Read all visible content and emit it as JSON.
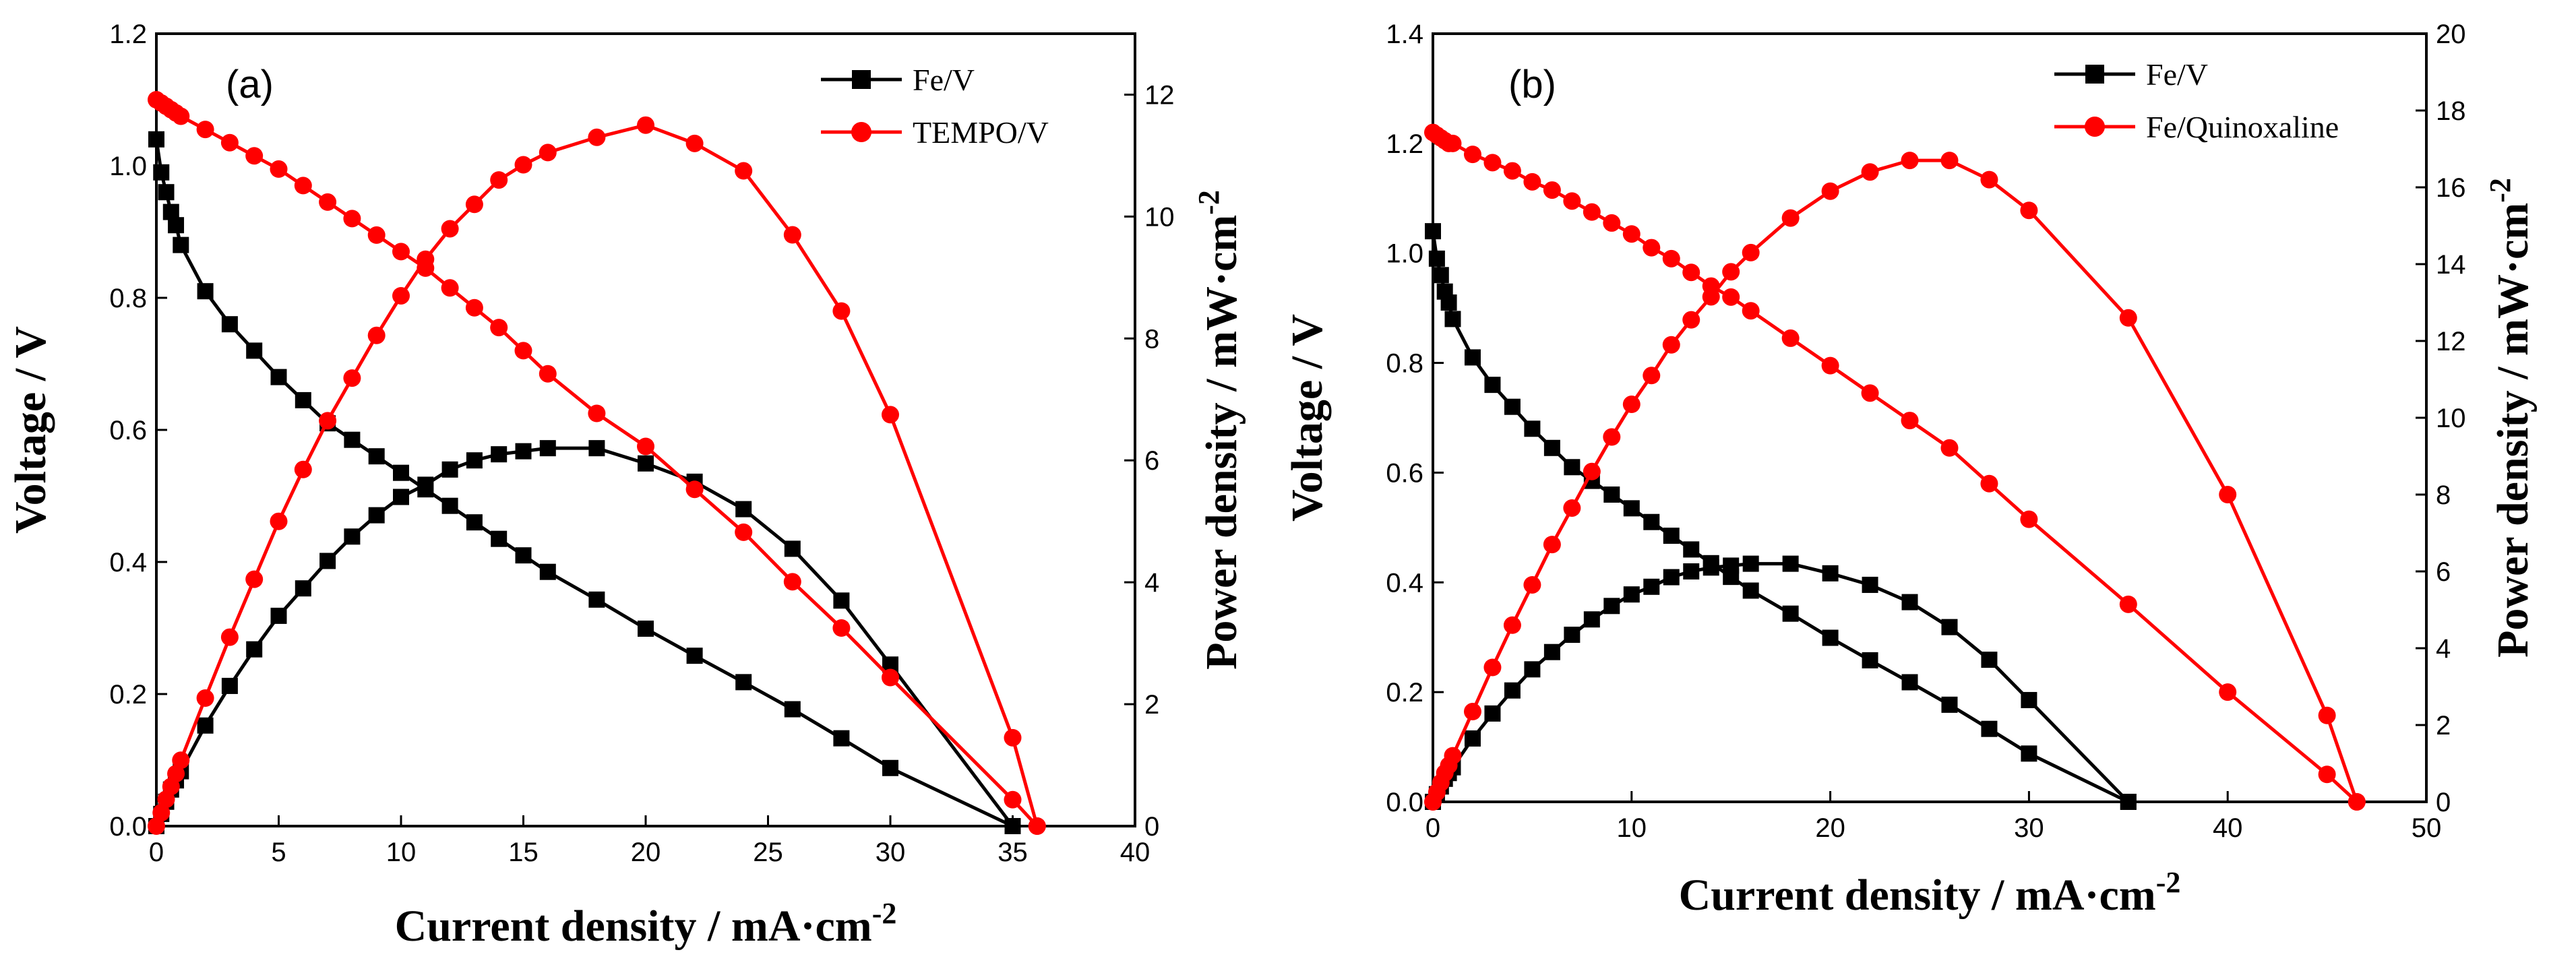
{
  "chart_data": [
    {
      "type": "line",
      "panel_label": "(a)",
      "xlabel": "Current density / mA·cm",
      "xlabel_exp": "-2",
      "ylabel": "Voltage / V",
      "y2label": "Power density / mW·cm",
      "y2label_exp": "-2",
      "xlim": [
        0,
        40
      ],
      "ylim": [
        0,
        1.2
      ],
      "y2lim": [
        0,
        13
      ],
      "xticks": [
        "0",
        "5",
        "10",
        "15",
        "20",
        "25",
        "30",
        "35",
        "40"
      ],
      "yticks": [
        "0.0",
        "0.2",
        "0.4",
        "0.6",
        "0.8",
        "1.0",
        "1.2"
      ],
      "y2ticks": [
        "0",
        "2",
        "4",
        "6",
        "8",
        "10",
        "12"
      ],
      "legend_position": "top-right",
      "grid": false,
      "series": [
        {
          "name": "Fe/V",
          "color": "#000000",
          "marker": "square",
          "kind": "voltage",
          "x": [
            0,
            0.2,
            0.4,
            0.6,
            0.8,
            1,
            2,
            3,
            4,
            5,
            6,
            7,
            8,
            9,
            10,
            11,
            12,
            13,
            14,
            15,
            16,
            18,
            20,
            22,
            24,
            26,
            28,
            30,
            35
          ],
          "y": [
            1.04,
            0.99,
            0.96,
            0.93,
            0.91,
            0.88,
            0.81,
            0.76,
            0.72,
            0.68,
            0.645,
            0.61,
            0.585,
            0.56,
            0.535,
            0.51,
            0.485,
            0.46,
            0.435,
            0.41,
            0.385,
            0.343,
            0.299,
            0.258,
            0.218,
            0.177,
            0.133,
            0.088,
            0.0
          ]
        },
        {
          "name": "Fe/V",
          "color": "#000000",
          "marker": "square",
          "kind": "power",
          "x": [
            0,
            0.2,
            0.4,
            0.6,
            0.8,
            1,
            2,
            3,
            4,
            5,
            6,
            7,
            8,
            9,
            10,
            11,
            12,
            13,
            14,
            15,
            16,
            18,
            20,
            22,
            24,
            26,
            28,
            30,
            35
          ],
          "y": [
            0,
            0.2,
            0.4,
            0.6,
            0.75,
            0.9,
            1.65,
            2.3,
            2.9,
            3.45,
            3.9,
            4.35,
            4.75,
            5.1,
            5.4,
            5.6,
            5.85,
            6.0,
            6.1,
            6.15,
            6.2,
            6.2,
            5.95,
            5.65,
            5.2,
            4.55,
            3.7,
            2.65,
            0.0
          ]
        },
        {
          "name": "TEMPO/V",
          "color": "#ff0000",
          "marker": "circle",
          "kind": "voltage",
          "x": [
            0,
            0.2,
            0.4,
            0.6,
            0.8,
            1,
            2,
            3,
            4,
            5,
            6,
            7,
            8,
            9,
            10,
            11,
            12,
            13,
            14,
            15,
            16,
            18,
            20,
            22,
            24,
            26,
            28,
            30,
            35,
            36
          ],
          "y": [
            1.1,
            1.095,
            1.09,
            1.085,
            1.08,
            1.075,
            1.055,
            1.035,
            1.015,
            0.995,
            0.97,
            0.945,
            0.92,
            0.895,
            0.87,
            0.845,
            0.815,
            0.785,
            0.755,
            0.72,
            0.685,
            0.625,
            0.575,
            0.51,
            0.445,
            0.37,
            0.3,
            0.225,
            0.04,
            0.0
          ]
        },
        {
          "name": "TEMPO/V",
          "color": "#ff0000",
          "marker": "circle",
          "kind": "power",
          "x": [
            0,
            0.2,
            0.4,
            0.6,
            0.8,
            1,
            2,
            3,
            4,
            5,
            6,
            7,
            8,
            9,
            10,
            11,
            12,
            13,
            14,
            15,
            16,
            18,
            20,
            22,
            24,
            26,
            28,
            30,
            35,
            36
          ],
          "y": [
            0,
            0.22,
            0.44,
            0.65,
            0.86,
            1.08,
            2.1,
            3.1,
            4.05,
            5.0,
            5.85,
            6.65,
            7.35,
            8.05,
            8.7,
            9.3,
            9.8,
            10.2,
            10.6,
            10.85,
            11.05,
            11.3,
            11.5,
            11.2,
            10.75,
            9.7,
            8.45,
            6.75,
            1.45,
            0.0
          ]
        }
      ]
    },
    {
      "type": "line",
      "panel_label": "(b)",
      "xlabel": "Current density / mA·cm",
      "xlabel_exp": "-2",
      "ylabel": "Voltage / V",
      "y2label": "Power density / mW·cm",
      "y2label_exp": "-2",
      "xlim": [
        0,
        50
      ],
      "ylim": [
        0,
        1.4
      ],
      "y2lim": [
        0,
        20
      ],
      "xticks": [
        "0",
        "10",
        "20",
        "30",
        "40",
        "50"
      ],
      "yticks": [
        "0.0",
        "0.2",
        "0.4",
        "0.6",
        "0.8",
        "1.0",
        "1.2",
        "1.4"
      ],
      "y2ticks": [
        "0",
        "2",
        "4",
        "6",
        "8",
        "10",
        "12",
        "14",
        "16",
        "18",
        "20"
      ],
      "legend_position": "top-right",
      "grid": false,
      "series": [
        {
          "name": "Fe/V",
          "color": "#000000",
          "marker": "square",
          "kind": "voltage",
          "x": [
            0,
            0.2,
            0.4,
            0.6,
            0.8,
            1,
            2,
            3,
            4,
            5,
            6,
            7,
            8,
            9,
            10,
            11,
            12,
            13,
            14,
            15,
            16,
            18,
            20,
            22,
            24,
            26,
            28,
            30,
            35
          ],
          "y": [
            1.04,
            0.99,
            0.96,
            0.93,
            0.91,
            0.88,
            0.81,
            0.76,
            0.72,
            0.68,
            0.645,
            0.61,
            0.585,
            0.56,
            0.535,
            0.51,
            0.485,
            0.46,
            0.435,
            0.41,
            0.385,
            0.343,
            0.299,
            0.258,
            0.218,
            0.177,
            0.133,
            0.088,
            0.0
          ]
        },
        {
          "name": "Fe/V",
          "color": "#000000",
          "marker": "square",
          "kind": "power",
          "x": [
            0,
            0.2,
            0.4,
            0.6,
            0.8,
            1,
            2,
            3,
            4,
            5,
            6,
            7,
            8,
            9,
            10,
            11,
            12,
            13,
            14,
            15,
            16,
            18,
            20,
            22,
            24,
            26,
            28,
            30,
            35
          ],
          "y": [
            0,
            0.2,
            0.4,
            0.6,
            0.75,
            0.9,
            1.65,
            2.3,
            2.9,
            3.45,
            3.9,
            4.35,
            4.75,
            5.1,
            5.4,
            5.6,
            5.85,
            6.0,
            6.1,
            6.15,
            6.2,
            6.2,
            5.95,
            5.65,
            5.2,
            4.55,
            3.7,
            2.65,
            0.0
          ]
        },
        {
          "name": "Fe/Quinoxaline",
          "color": "#ff0000",
          "marker": "circle",
          "kind": "voltage",
          "x": [
            0,
            0.2,
            0.4,
            0.6,
            0.8,
            1,
            2,
            3,
            4,
            5,
            6,
            7,
            8,
            9,
            10,
            11,
            12,
            13,
            14,
            15,
            16,
            18,
            20,
            22,
            24,
            26,
            28,
            30,
            35,
            40,
            45,
            46.5
          ],
          "y": [
            1.22,
            1.215,
            1.21,
            1.205,
            1.2,
            1.2,
            1.18,
            1.165,
            1.15,
            1.13,
            1.115,
            1.095,
            1.075,
            1.055,
            1.035,
            1.01,
            0.99,
            0.965,
            0.94,
            0.92,
            0.895,
            0.845,
            0.795,
            0.745,
            0.695,
            0.645,
            0.58,
            0.515,
            0.36,
            0.2,
            0.05,
            0.0
          ]
        },
        {
          "name": "Fe/Quinoxaline",
          "color": "#ff0000",
          "marker": "circle",
          "kind": "power",
          "x": [
            0,
            0.2,
            0.4,
            0.6,
            0.8,
            1,
            2,
            3,
            4,
            5,
            6,
            7,
            8,
            9,
            10,
            11,
            12,
            13,
            14,
            15,
            16,
            18,
            20,
            22,
            24,
            26,
            28,
            30,
            35,
            40,
            45,
            46.5
          ],
          "y": [
            0,
            0.25,
            0.5,
            0.75,
            0.95,
            1.2,
            2.35,
            3.5,
            4.6,
            5.65,
            6.7,
            7.65,
            8.6,
            9.5,
            10.35,
            11.1,
            11.9,
            12.55,
            13.15,
            13.8,
            14.3,
            15.2,
            15.9,
            16.4,
            16.7,
            16.7,
            16.2,
            15.4,
            12.6,
            8.0,
            2.25,
            0.0
          ]
        }
      ]
    }
  ]
}
